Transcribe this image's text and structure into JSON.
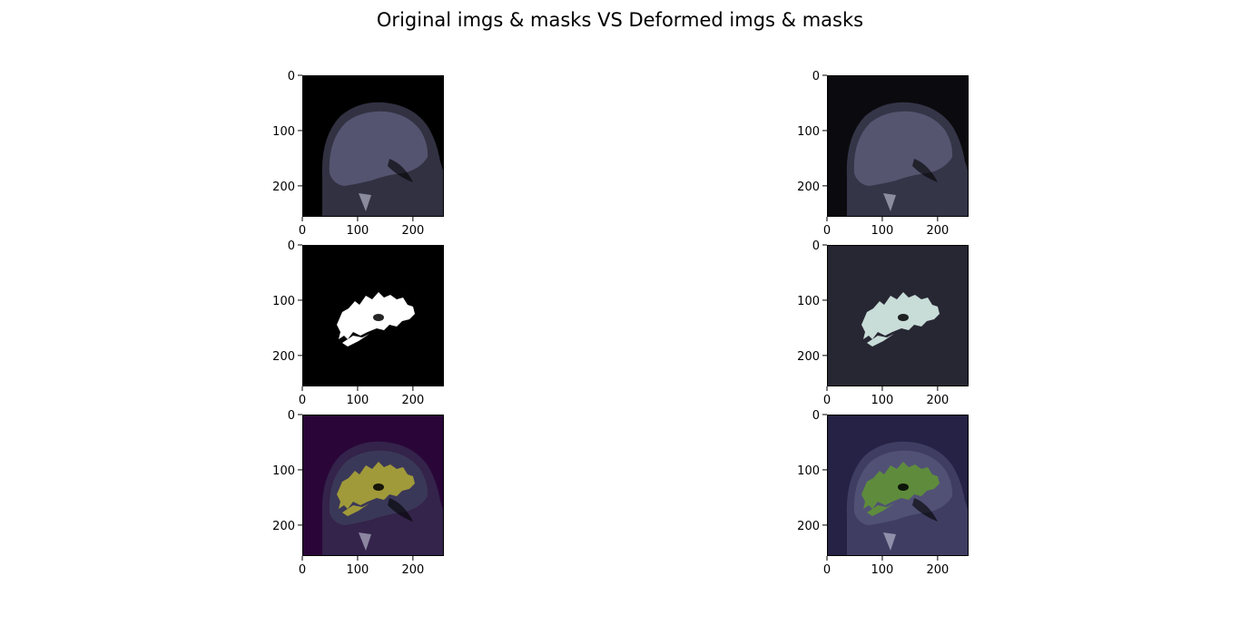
{
  "chart_data": {
    "type": "image-grid",
    "title": "Original imgs & masks VS Deformed imgs & masks",
    "rows": 3,
    "cols": 2,
    "panels": [
      {
        "id": "orig-img",
        "row": 0,
        "col": 0,
        "content": "mri-slice",
        "colors": {
          "bg": "#000000",
          "tissue": "#5a5a78"
        }
      },
      {
        "id": "def-img",
        "row": 0,
        "col": 1,
        "content": "mri-slice",
        "colors": {
          "bg": "#0b0b0f",
          "tissue": "#5a5a78"
        }
      },
      {
        "id": "orig-mask",
        "row": 1,
        "col": 0,
        "content": "mask",
        "colors": {
          "bg": "#000000",
          "mask": "#ffffff"
        }
      },
      {
        "id": "def-mask",
        "row": 1,
        "col": 1,
        "content": "mask",
        "colors": {
          "bg": "#272733",
          "mask": "#c8dcd8"
        }
      },
      {
        "id": "orig-overlay",
        "row": 2,
        "col": 0,
        "content": "overlay",
        "colors": {
          "bg": "#2a0638",
          "tissue": "#3c3c5a",
          "mask": "#a09a3a"
        }
      },
      {
        "id": "def-overlay",
        "row": 2,
        "col": 1,
        "content": "overlay",
        "colors": {
          "bg": "#252245",
          "tissue": "#55557a",
          "mask": "#5e8c3c"
        }
      }
    ],
    "xlim": [
      0,
      256
    ],
    "ylim": [
      256,
      0
    ],
    "xticks": [
      0,
      100,
      200
    ],
    "yticks": [
      0,
      100,
      200
    ],
    "xtick_labels": [
      "0",
      "100",
      "200"
    ],
    "ytick_labels": [
      "0",
      "100",
      "200"
    ]
  }
}
